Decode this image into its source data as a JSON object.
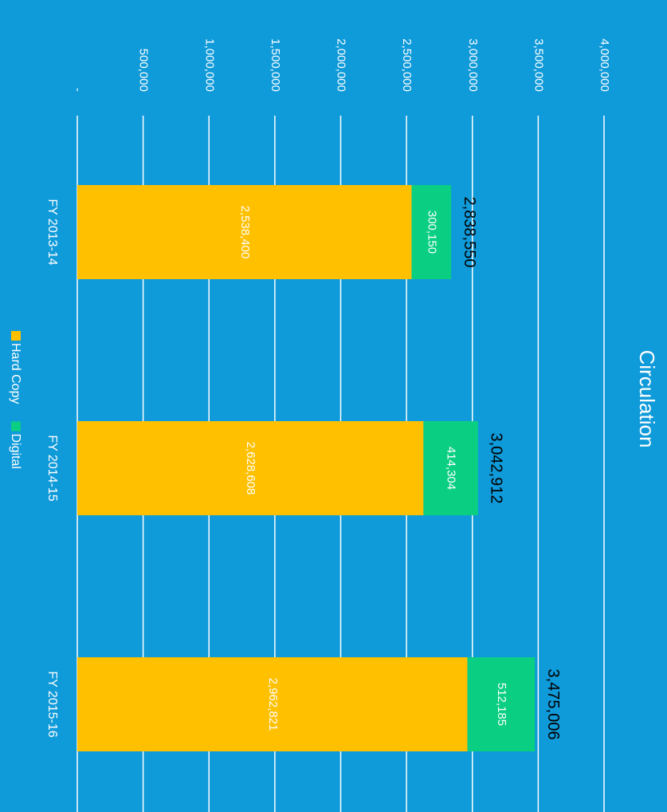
{
  "chart_data": {
    "type": "stacked_bar",
    "title": "Circulation",
    "categories": [
      "FY 2013-14",
      "FY 2014-15",
      "FY 2015-16"
    ],
    "series": [
      {
        "name": "Hard Copy",
        "color": "#ffc000",
        "values": [
          2538400,
          2628608,
          2962821
        ],
        "value_labels": [
          "2,538,400",
          "2,628,608",
          "2,962,821"
        ]
      },
      {
        "name": "Digital",
        "color": "#0acf83",
        "values": [
          300150,
          414304,
          512185
        ],
        "value_labels": [
          "300,150",
          "414,304",
          "512,185"
        ]
      }
    ],
    "total_labels": [
      "2,838,550",
      "3,042,912",
      "3,475,006"
    ],
    "ylim": [
      0,
      4000000
    ],
    "yticks": [
      {
        "value": 0,
        "label": "-"
      },
      {
        "value": 500000,
        "label": "500,000"
      },
      {
        "value": 1000000,
        "label": "1,000,000"
      },
      {
        "value": 1500000,
        "label": "1,500,000"
      },
      {
        "value": 2000000,
        "label": "2,000,000"
      },
      {
        "value": 2500000,
        "label": "2,500,000"
      },
      {
        "value": 3000000,
        "label": "3,000,000"
      },
      {
        "value": 3500000,
        "label": "3,500,000"
      },
      {
        "value": 4000000,
        "label": "4,000,000"
      }
    ],
    "grid": true,
    "legend": "bottom"
  }
}
